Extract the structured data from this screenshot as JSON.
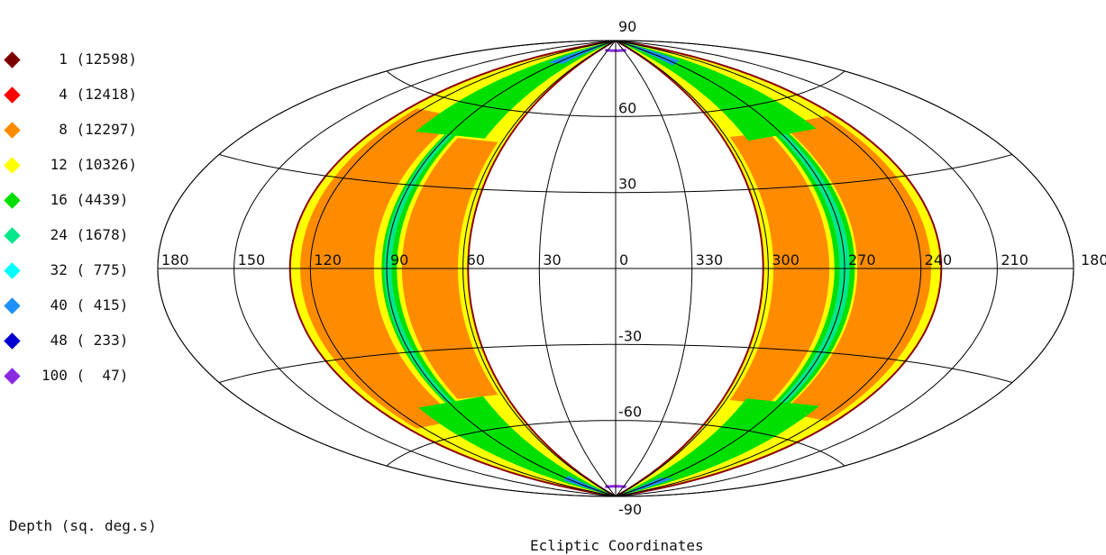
{
  "map": {
    "lon_labels": [
      "180",
      "150",
      "120",
      "90",
      "60",
      "30",
      "0",
      "330",
      "300",
      "270",
      "240",
      "210",
      "180"
    ],
    "lat_labels": [
      "90",
      "60",
      "30",
      "-30",
      "-60",
      "-90"
    ],
    "grid_color": "#000000",
    "band_edge_color": "#8b0000"
  },
  "legend": {
    "items": [
      {
        "label": "  1 (12598)",
        "color": "#7a0000"
      },
      {
        "label": "  4 (12418)",
        "color": "#ff0000"
      },
      {
        "label": "  8 (12297)",
        "color": "#ff8c00"
      },
      {
        "label": " 12 (10326)",
        "color": "#ffff00"
      },
      {
        "label": " 16 (4439)",
        "color": "#00e000"
      },
      {
        "label": " 24 (1678)",
        "color": "#00e68a"
      },
      {
        "label": " 32 ( 775)",
        "color": "#00ffff"
      },
      {
        "label": " 40 ( 415)",
        "color": "#1e90ff"
      },
      {
        "label": " 48 ( 233)",
        "color": "#0000d0"
      },
      {
        "label": "100 (  47)",
        "color": "#8a2be2"
      }
    ]
  },
  "captions": {
    "depth": "Depth (sq. deg.s)",
    "coordinates": "Ecliptic Coordinates"
  }
}
